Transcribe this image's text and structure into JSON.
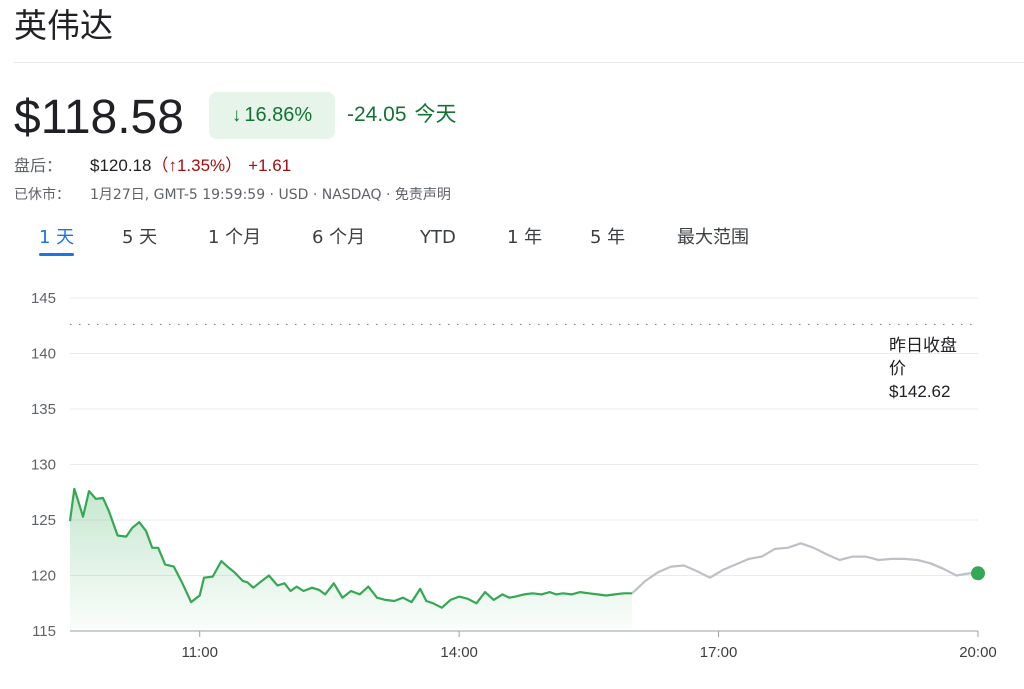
{
  "title": "英伟达",
  "quote": {
    "price": "$118.58",
    "change_pct": "16.86%",
    "change_arrow": "↓",
    "change_abs": "-24.05",
    "today_label": "今天"
  },
  "after_hours": {
    "label": "盘后：",
    "price": "$120.18",
    "paren_open": "（",
    "arrow": "↑",
    "pct": "1.35%",
    "paren_close": "）",
    "abs": "+1.61"
  },
  "meta": {
    "label": "已休市：",
    "text": "1月27日, GMT-5 19:59:59 · USD · NASDAQ · 免责声明"
  },
  "tabs": [
    {
      "label": "1 天",
      "active": true
    },
    {
      "label": "5 天",
      "active": false
    },
    {
      "label": "1 个月",
      "active": false
    },
    {
      "label": "6 个月",
      "active": false
    },
    {
      "label": "YTD",
      "active": false
    },
    {
      "label": "1 年",
      "active": false
    },
    {
      "label": "5 年",
      "active": false
    },
    {
      "label": "最大范围",
      "active": false
    }
  ],
  "colors": {
    "up_green": "#34a853",
    "after_hours_gray": "#bdc1c6",
    "change_green": "#137333",
    "change_red": "#a50e0e",
    "tab_active": "#1a73e8"
  },
  "chart_data": {
    "type": "line",
    "ylim": [
      115,
      145
    ],
    "y_ticks": [
      "145",
      "140",
      "135",
      "130",
      "125",
      "120",
      "115"
    ],
    "x_ticks": [
      "11:00",
      "14:00",
      "17:00",
      "20:00"
    ],
    "x_tick_hours": [
      11,
      14,
      17,
      20
    ],
    "x_range_hours": [
      9.5,
      20
    ],
    "previous_close": 142.62,
    "previous_close_label": [
      "昨日收盘",
      "价",
      "$142.62"
    ],
    "grid": true,
    "series": [
      {
        "segment": "market",
        "x": [
          9.5,
          9.55,
          9.6,
          9.65,
          9.72,
          9.8,
          9.88,
          9.95,
          10.05,
          10.15,
          10.22,
          10.3,
          10.38,
          10.45,
          10.52,
          10.6,
          10.7,
          10.8,
          10.9,
          11.0,
          11.05,
          11.15,
          11.25,
          11.32,
          11.4,
          11.5,
          11.55,
          11.62,
          11.7,
          11.8,
          11.9,
          11.98,
          12.05,
          12.12,
          12.2,
          12.3,
          12.38,
          12.45,
          12.55,
          12.65,
          12.75,
          12.85,
          12.95,
          13.05,
          13.15,
          13.25,
          13.35,
          13.45,
          13.55,
          13.62,
          13.7,
          13.8,
          13.9,
          14.0,
          14.1,
          14.2,
          14.3,
          14.4,
          14.5,
          14.58,
          14.65,
          14.75,
          14.85,
          14.95,
          15.05,
          15.12,
          15.2,
          15.3,
          15.4,
          15.5,
          15.6,
          15.7,
          15.8,
          15.9,
          16.0
        ],
        "y": [
          124.9,
          127.8,
          126.6,
          125.3,
          127.6,
          126.9,
          127.0,
          125.8,
          123.6,
          123.5,
          124.3,
          124.8,
          124.0,
          122.5,
          122.5,
          121.0,
          120.8,
          119.3,
          117.6,
          118.2,
          119.8,
          119.9,
          121.3,
          120.8,
          120.3,
          119.5,
          119.4,
          118.9,
          119.4,
          120.0,
          119.1,
          119.3,
          118.6,
          119.0,
          118.6,
          118.9,
          118.7,
          118.3,
          119.3,
          118.0,
          118.6,
          118.3,
          119.0,
          118.0,
          117.8,
          117.7,
          118.0,
          117.6,
          118.8,
          117.7,
          117.5,
          117.1,
          117.8,
          118.1,
          117.9,
          117.5,
          118.5,
          117.8,
          118.3,
          118.0,
          118.1,
          118.3,
          118.4,
          118.3,
          118.5,
          118.3,
          118.4,
          118.3,
          118.5,
          118.4,
          118.3,
          118.2,
          118.3,
          118.4,
          118.4
        ]
      },
      {
        "segment": "after_hours",
        "x": [
          16.0,
          16.15,
          16.3,
          16.45,
          16.6,
          16.75,
          16.9,
          17.05,
          17.2,
          17.35,
          17.5,
          17.65,
          17.8,
          17.95,
          18.1,
          18.25,
          18.4,
          18.55,
          18.7,
          18.85,
          19.0,
          19.15,
          19.3,
          19.45,
          19.6,
          19.75,
          19.9,
          20.0
        ],
        "y": [
          118.4,
          119.5,
          120.3,
          120.8,
          120.9,
          120.4,
          119.8,
          120.5,
          121.0,
          121.5,
          121.7,
          122.4,
          122.5,
          122.9,
          122.5,
          121.9,
          121.4,
          121.7,
          121.7,
          121.4,
          121.5,
          121.5,
          121.4,
          121.1,
          120.6,
          120.0,
          120.2,
          120.2
        ]
      }
    ]
  }
}
